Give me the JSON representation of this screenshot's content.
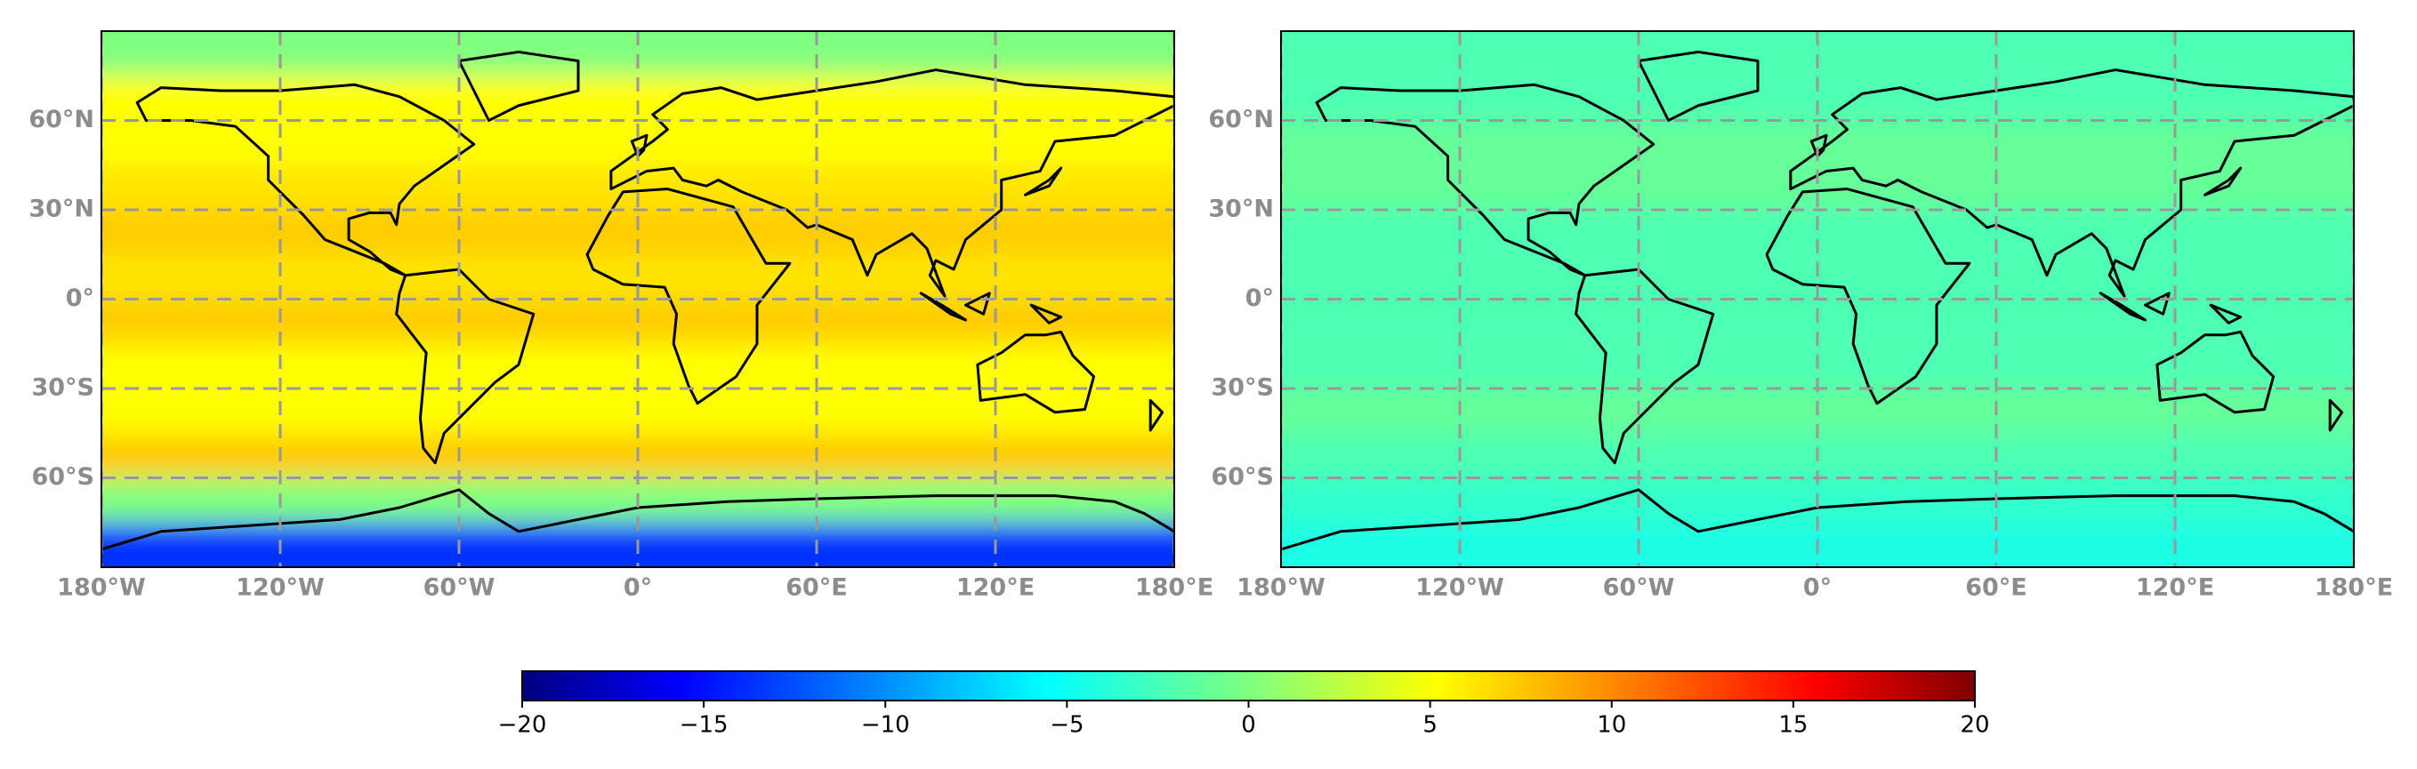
{
  "maps": [
    {
      "type": "map",
      "xlim": [
        -180,
        180
      ],
      "ylim": [
        -90,
        90
      ],
      "grid": true,
      "xticks": [
        {
          "value": -180,
          "label": "180°W"
        },
        {
          "value": -120,
          "label": "120°W"
        },
        {
          "value": -60,
          "label": "60°W"
        },
        {
          "value": 0,
          "label": "0°"
        },
        {
          "value": 60,
          "label": "60°E"
        },
        {
          "value": 120,
          "label": "120°E"
        },
        {
          "value": 180,
          "label": "180°E"
        }
      ],
      "yticks": [
        {
          "value": 60,
          "label": "60°N"
        },
        {
          "value": 30,
          "label": "30°N"
        },
        {
          "value": 0,
          "label": "0°"
        },
        {
          "value": -30,
          "label": "30°S"
        },
        {
          "value": -60,
          "label": "60°S"
        }
      ],
      "lat_bands": [
        90,
        75,
        60,
        45,
        30,
        15,
        0,
        -15,
        -30,
        -45,
        -60,
        -75,
        -90
      ],
      "values": [
        0,
        5,
        5,
        6,
        7,
        6,
        7,
        5,
        5,
        7,
        0,
        -13
      ]
    },
    {
      "type": "map",
      "xlim": [
        -180,
        180
      ],
      "ylim": [
        -90,
        90
      ],
      "grid": true,
      "xticks": [
        {
          "value": -180,
          "label": "180°W"
        },
        {
          "value": -120,
          "label": "120°W"
        },
        {
          "value": -60,
          "label": "60°W"
        },
        {
          "value": 0,
          "label": "0°"
        },
        {
          "value": 60,
          "label": "60°E"
        },
        {
          "value": 120,
          "label": "120°E"
        },
        {
          "value": 180,
          "label": "180°E"
        }
      ],
      "yticks": [
        {
          "value": 60,
          "label": "60°N"
        },
        {
          "value": 30,
          "label": "30°N"
        },
        {
          "value": 0,
          "label": "0°"
        },
        {
          "value": -30,
          "label": "30°S"
        },
        {
          "value": -60,
          "label": "60°S"
        }
      ],
      "lat_bands": [
        90,
        75,
        60,
        45,
        30,
        15,
        0,
        -15,
        -30,
        -45,
        -60,
        -75,
        -90
      ],
      "values": [
        -2,
        -2,
        -1,
        -1,
        -2,
        -2,
        -2,
        -2,
        -1,
        -2,
        -3,
        -4
      ]
    }
  ],
  "colorbar": {
    "colormap": "jet",
    "lim": [
      -20,
      20
    ],
    "ticks": [
      {
        "value": -20,
        "label": "−20"
      },
      {
        "value": -15,
        "label": "−15"
      },
      {
        "value": -10,
        "label": "−10"
      },
      {
        "value": -5,
        "label": "−5"
      },
      0,
      5,
      10,
      15,
      20
    ]
  }
}
